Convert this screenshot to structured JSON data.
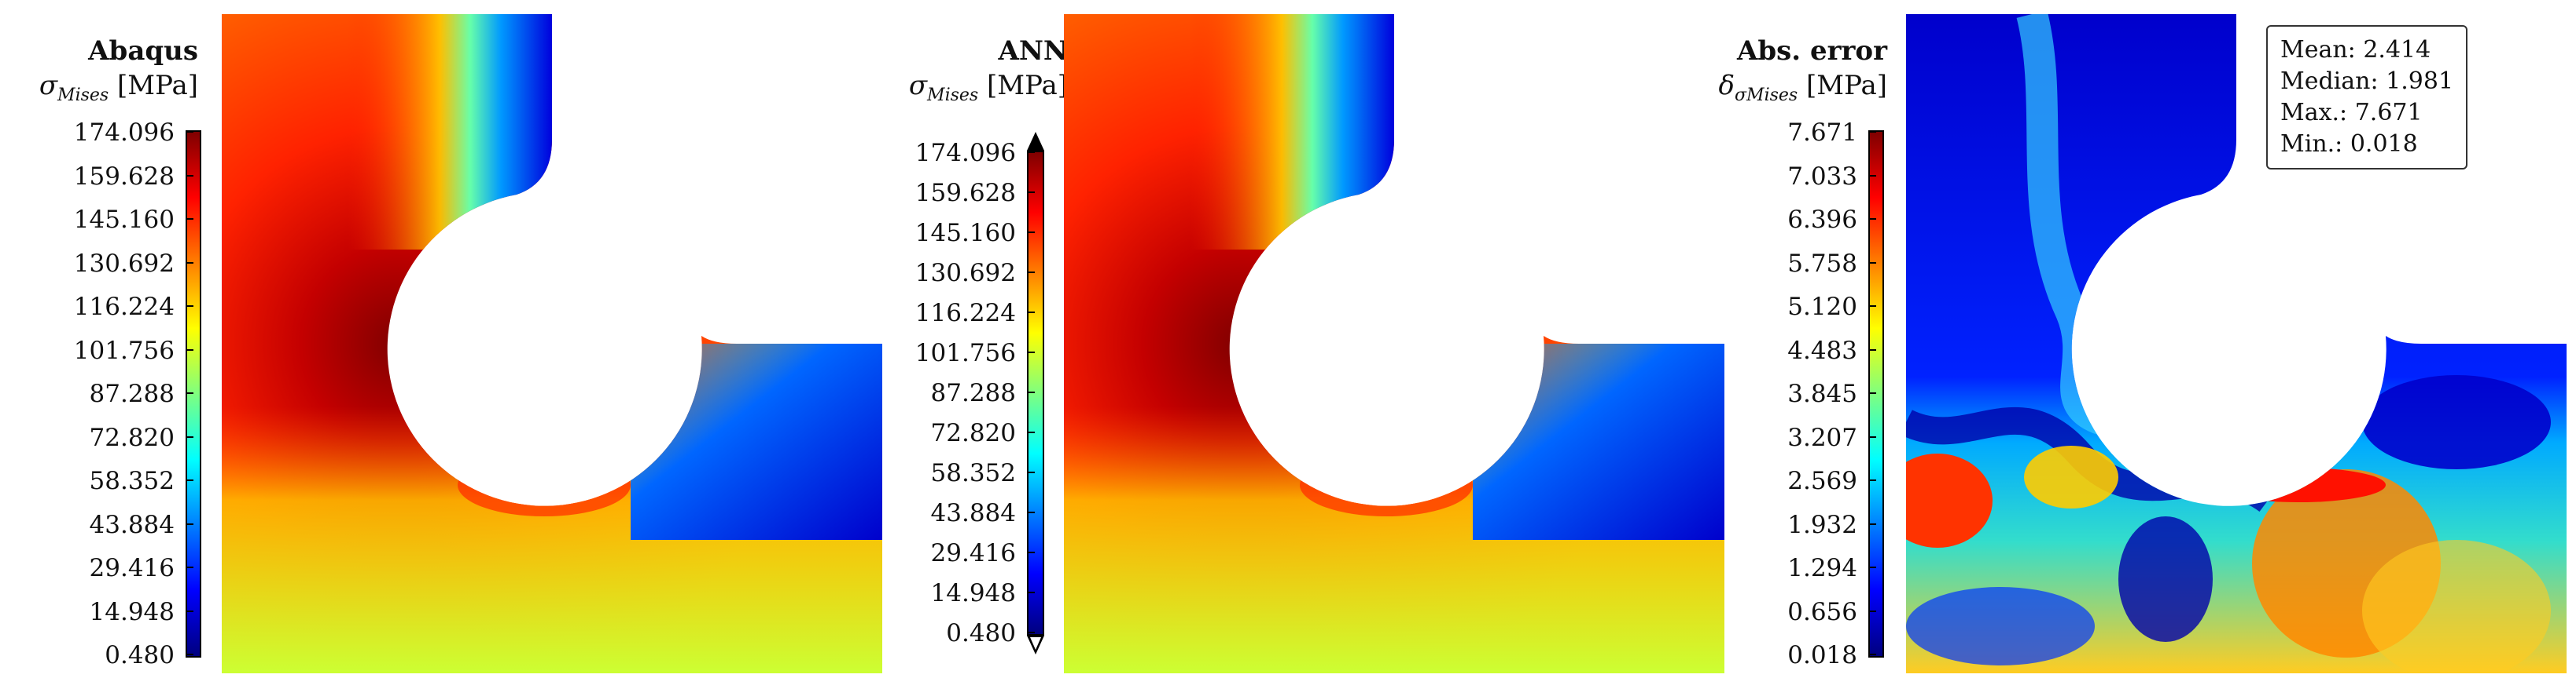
{
  "chart_data": [
    {
      "type": "heatmap",
      "title": "Abaqus",
      "quantity_label": "σ",
      "quantity_sub": "Mises",
      "unit": "[MPa]",
      "colorbar": {
        "ticks": [
          "174.096",
          "159.628",
          "145.160",
          "130.692",
          "116.224",
          "101.756",
          "87.288",
          "72.820",
          "58.352",
          "43.884",
          "29.416",
          "14.948",
          "0.480"
        ],
        "min": 0.48,
        "max": 174.096,
        "colormap": "jet",
        "extend": false
      }
    },
    {
      "type": "heatmap",
      "title": "ANN",
      "quantity_label": "σ",
      "quantity_sub": "Mises",
      "unit": "[MPa]",
      "colorbar": {
        "ticks": [
          "174.096",
          "159.628",
          "145.160",
          "130.692",
          "116.224",
          "101.756",
          "87.288",
          "72.820",
          "58.352",
          "43.884",
          "29.416",
          "14.948",
          "0.480"
        ],
        "min": 0.48,
        "max": 174.096,
        "colormap": "jet",
        "extend": true
      }
    },
    {
      "type": "heatmap",
      "title": "Abs. error",
      "quantity_label": "δ",
      "quantity_sub": "σMises",
      "unit": "[MPa]",
      "colorbar": {
        "ticks": [
          "7.671",
          "7.033",
          "6.396",
          "5.758",
          "5.120",
          "4.483",
          "3.845",
          "3.207",
          "2.569",
          "1.932",
          "1.294",
          "0.656",
          "0.018"
        ],
        "min": 0.018,
        "max": 7.671,
        "colormap": "jet",
        "extend": false
      },
      "stats": [
        {
          "label": "Mean:",
          "value": "2.414"
        },
        {
          "label": "Median:",
          "value": "1.981"
        },
        {
          "label": "Max.:",
          "value": "7.671"
        },
        {
          "label": "Min.:",
          "value": "0.018"
        }
      ]
    }
  ],
  "colors": {
    "jet": [
      "#00007f",
      "#0000ff",
      "#007fff",
      "#00ffff",
      "#7fff7f",
      "#ffff00",
      "#ff7f00",
      "#ff0000",
      "#7f0000"
    ]
  }
}
